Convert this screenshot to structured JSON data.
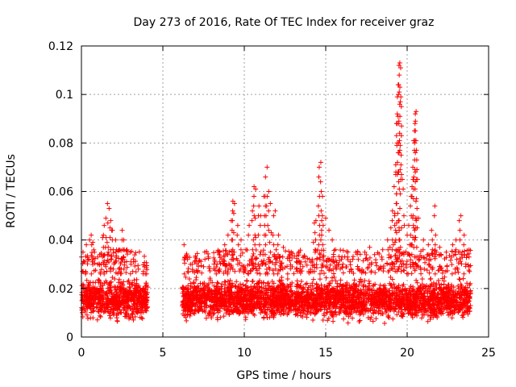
{
  "chart_data": {
    "type": "scatter",
    "title": "Day 273 of 2016, Rate Of TEC Index for receiver graz",
    "xlabel": "GPS time / hours",
    "ylabel": "ROTI / TECUs",
    "xlim": [
      0,
      25
    ],
    "ylim": [
      0,
      0.12
    ],
    "x_ticks": [
      0,
      5,
      10,
      15,
      20,
      25
    ],
    "x_tick_labels": [
      "0",
      "5",
      "10",
      "15",
      "20",
      "25"
    ],
    "y_ticks": [
      0,
      0.02,
      0.04,
      0.06,
      0.08,
      0.1,
      0.12
    ],
    "y_tick_labels": [
      "0",
      "0.02",
      "0.04",
      "0.06",
      "0.08",
      "0.1",
      "0.12"
    ],
    "grid": true,
    "marker": "+",
    "color": "#ff0000",
    "series": [
      {
        "name": "ROTI",
        "points": [
          [
            0.0,
            0.033
          ],
          [
            0.1,
            0.035
          ],
          [
            0.2,
            0.031
          ],
          [
            0.3,
            0.038
          ],
          [
            0.5,
            0.04
          ],
          [
            0.6,
            0.042
          ],
          [
            0.7,
            0.039
          ],
          [
            0.8,
            0.035
          ],
          [
            1.0,
            0.033
          ],
          [
            1.2,
            0.034
          ],
          [
            1.3,
            0.041
          ],
          [
            1.4,
            0.046
          ],
          [
            1.5,
            0.049
          ],
          [
            1.6,
            0.055
          ],
          [
            1.7,
            0.053
          ],
          [
            1.8,
            0.048
          ],
          [
            1.9,
            0.044
          ],
          [
            2.1,
            0.04
          ],
          [
            2.3,
            0.036
          ],
          [
            2.5,
            0.044
          ],
          [
            2.6,
            0.04
          ],
          [
            2.8,
            0.036
          ],
          [
            3.0,
            0.035
          ],
          [
            3.2,
            0.031
          ],
          [
            3.5,
            0.028
          ],
          [
            3.8,
            0.027
          ],
          [
            4.0,
            0.026
          ],
          [
            6.3,
            0.038
          ],
          [
            6.5,
            0.033
          ],
          [
            6.8,
            0.03
          ],
          [
            7.2,
            0.031
          ],
          [
            7.5,
            0.029
          ],
          [
            7.8,
            0.033
          ],
          [
            8.2,
            0.031
          ],
          [
            8.5,
            0.035
          ],
          [
            8.8,
            0.038
          ],
          [
            9.0,
            0.042
          ],
          [
            9.2,
            0.048
          ],
          [
            9.3,
            0.056
          ],
          [
            9.4,
            0.055
          ],
          [
            9.6,
            0.046
          ],
          [
            9.8,
            0.04
          ],
          [
            10.1,
            0.036
          ],
          [
            10.3,
            0.046
          ],
          [
            10.5,
            0.052
          ],
          [
            10.6,
            0.062
          ],
          [
            10.7,
            0.061
          ],
          [
            10.9,
            0.054
          ],
          [
            11.0,
            0.05
          ],
          [
            11.2,
            0.058
          ],
          [
            11.3,
            0.066
          ],
          [
            11.4,
            0.07
          ],
          [
            11.5,
            0.06
          ],
          [
            11.6,
            0.055
          ],
          [
            11.8,
            0.05
          ],
          [
            11.9,
            0.052
          ],
          [
            12.1,
            0.042
          ],
          [
            12.4,
            0.037
          ],
          [
            12.8,
            0.034
          ],
          [
            13.2,
            0.031
          ],
          [
            13.6,
            0.029
          ],
          [
            14.0,
            0.032
          ],
          [
            14.3,
            0.047
          ],
          [
            14.4,
            0.048
          ],
          [
            14.6,
            0.07
          ],
          [
            14.7,
            0.072
          ],
          [
            14.8,
            0.058
          ],
          [
            15.0,
            0.049
          ],
          [
            15.2,
            0.044
          ],
          [
            15.4,
            0.04
          ],
          [
            15.6,
            0.036
          ],
          [
            16.0,
            0.033
          ],
          [
            16.5,
            0.031
          ],
          [
            17.0,
            0.032
          ],
          [
            17.4,
            0.035
          ],
          [
            17.7,
            0.037
          ],
          [
            18.0,
            0.034
          ],
          [
            18.5,
            0.036
          ],
          [
            18.8,
            0.04
          ],
          [
            19.0,
            0.045
          ],
          [
            19.1,
            0.052
          ],
          [
            19.2,
            0.062
          ],
          [
            19.3,
            0.071
          ],
          [
            19.35,
            0.088
          ],
          [
            19.4,
            0.099
          ],
          [
            19.45,
            0.104
          ],
          [
            19.5,
            0.112
          ],
          [
            19.55,
            0.113
          ],
          [
            19.6,
            0.111
          ],
          [
            19.7,
            0.065
          ],
          [
            19.8,
            0.05
          ],
          [
            20.0,
            0.042
          ],
          [
            20.1,
            0.046
          ],
          [
            20.2,
            0.054
          ],
          [
            20.3,
            0.062
          ],
          [
            20.35,
            0.07
          ],
          [
            20.4,
            0.081
          ],
          [
            20.45,
            0.085
          ],
          [
            20.5,
            0.092
          ],
          [
            20.55,
            0.093
          ],
          [
            20.6,
            0.069
          ],
          [
            20.7,
            0.049
          ],
          [
            21.0,
            0.04
          ],
          [
            21.3,
            0.038
          ],
          [
            21.5,
            0.044
          ],
          [
            21.7,
            0.054
          ],
          [
            22.0,
            0.037
          ],
          [
            22.4,
            0.035
          ],
          [
            22.8,
            0.038
          ],
          [
            23.0,
            0.04
          ],
          [
            23.2,
            0.048
          ],
          [
            23.3,
            0.05
          ],
          [
            23.5,
            0.042
          ],
          [
            23.8,
            0.033
          ]
        ]
      }
    ],
    "dense_band": {
      "segments": [
        [
          0.0,
          4.1
        ],
        [
          6.2,
          23.9
        ]
      ],
      "y_low": 0.005,
      "y_high": 0.026,
      "y_center": 0.016
    }
  }
}
